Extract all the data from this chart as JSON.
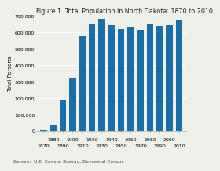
{
  "title": "Figure 1. Total Population in North Dakota: 1870 to 2010",
  "years": [
    1870,
    1880,
    1890,
    1900,
    1910,
    1920,
    1930,
    1940,
    1950,
    1960,
    1970,
    1980,
    1990,
    2000,
    2010
  ],
  "values": [
    2405,
    36909,
    190983,
    319146,
    577056,
    646872,
    680845,
    641935,
    619636,
    632446,
    617761,
    652717,
    638800,
    642200,
    672591
  ],
  "bar_color": "#1a6fa8",
  "ylabel": "Total Persons",
  "ylim": [
    0,
    700000
  ],
  "yticks": [
    0,
    100000,
    200000,
    300000,
    400000,
    500000,
    600000,
    700000
  ],
  "ytick_labels": [
    "0",
    "100,000",
    "200,000",
    "300,000",
    "400,000",
    "500,000",
    "600,000",
    "700,000"
  ],
  "xticks_row1": [
    1880,
    1900,
    1920,
    1940,
    1960,
    1980,
    2000
  ],
  "xticks_row2": [
    1870,
    1890,
    1910,
    1930,
    1950,
    1970,
    1990,
    2010
  ],
  "source_text": "Source:  U.S. Census Bureau, Decennial Census",
  "bg_color": "#f0f0ea",
  "title_fontsize": 5.8,
  "label_fontsize": 5.0,
  "tick_fontsize": 4.5,
  "source_fontsize": 4.2
}
